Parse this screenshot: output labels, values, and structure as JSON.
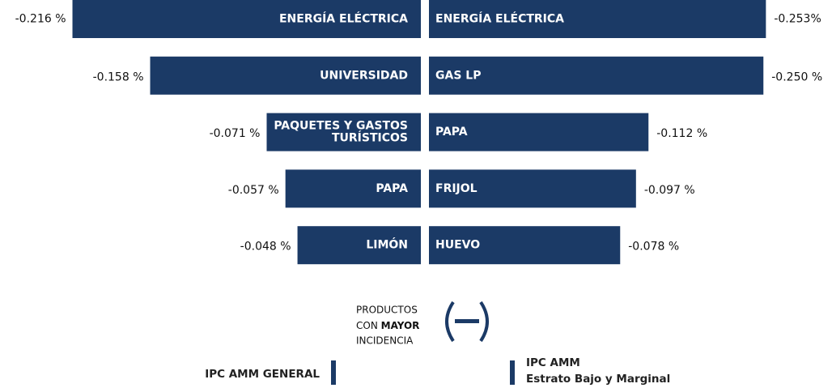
{
  "chart_data": [
    {
      "type": "bar",
      "side": "left",
      "title": [
        "IPC AMM GENERAL"
      ],
      "color": "#1b3a66",
      "categories": [
        "ENERGÍA ELÉCTRICA",
        "UNIVERSIDAD",
        [
          "PAQUETES Y GASTOS",
          "TURÍSTICOS"
        ],
        "PAPA",
        "LIMÓN"
      ],
      "values": [
        -0.216,
        -0.158,
        -0.071,
        -0.057,
        -0.048
      ],
      "value_labels": [
        "-0.216 %",
        "-0.158 %",
        "-0.071 %",
        "-0.057 %",
        "-0.048 %"
      ]
    },
    {
      "type": "bar",
      "side": "right",
      "title": [
        "IPC AMM",
        "Estrato Bajo y Marginal"
      ],
      "color": "#1b3a66",
      "categories": [
        "ENERGÍA ELÉCTRICA",
        "GAS LP",
        "PAPA",
        "FRIJOL",
        "HUEVO"
      ],
      "values": [
        -0.253,
        -0.25,
        -0.112,
        -0.097,
        -0.078
      ],
      "value_labels": [
        "-0.253%",
        "-0.250 %",
        "-0.112 %",
        "-0.097 %",
        "-0.078 %"
      ]
    }
  ],
  "note": [
    "PRODUCTOS",
    "CON",
    "MAYOR",
    "INCIDENCIA"
  ]
}
